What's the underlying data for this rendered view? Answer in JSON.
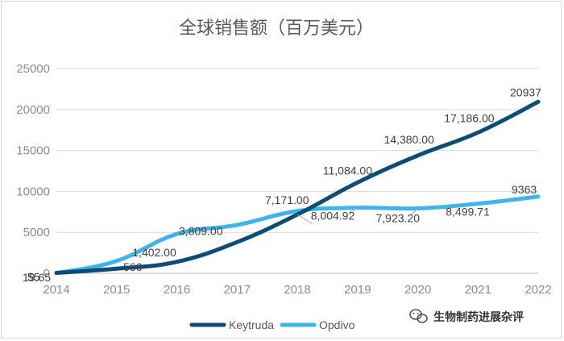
{
  "chart_data": {
    "type": "line",
    "title": "全球销售额（百万美元）",
    "x": [
      "2014",
      "2015",
      "2016",
      "2017",
      "2018",
      "2019",
      "2020",
      "2021",
      "2022"
    ],
    "ylim": [
      0,
      25000
    ],
    "yticks": [
      "0",
      "5000",
      "10000",
      "15000",
      "20000",
      "25000"
    ],
    "grid": true,
    "legend_position": "bottom",
    "series": [
      {
        "name": "Keytruda",
        "color": "#0d4d75",
        "values": [
          55,
          566,
          1402,
          3809,
          7171,
          11084,
          14380,
          17186,
          20937
        ],
        "labels": [
          "55",
          "566",
          "1,402.00",
          "3,809.00",
          "7,171.00",
          "11,084.00",
          "14,380.00",
          "17,186.00",
          "20937"
        ]
      },
      {
        "name": "Opdivo",
        "color": "#3fb4e8",
        "values": [
          19.65,
          1500,
          4800,
          5900,
          7600,
          8004.92,
          7923.2,
          8499.71,
          9363
        ],
        "labels": [
          "19.65",
          "",
          "",
          "",
          "",
          "8,004.92",
          "7,923.20",
          "8,499.71",
          "9363"
        ]
      }
    ]
  },
  "watermark": {
    "text": "生物制药进展杂评",
    "icon": "wechat-icon"
  }
}
